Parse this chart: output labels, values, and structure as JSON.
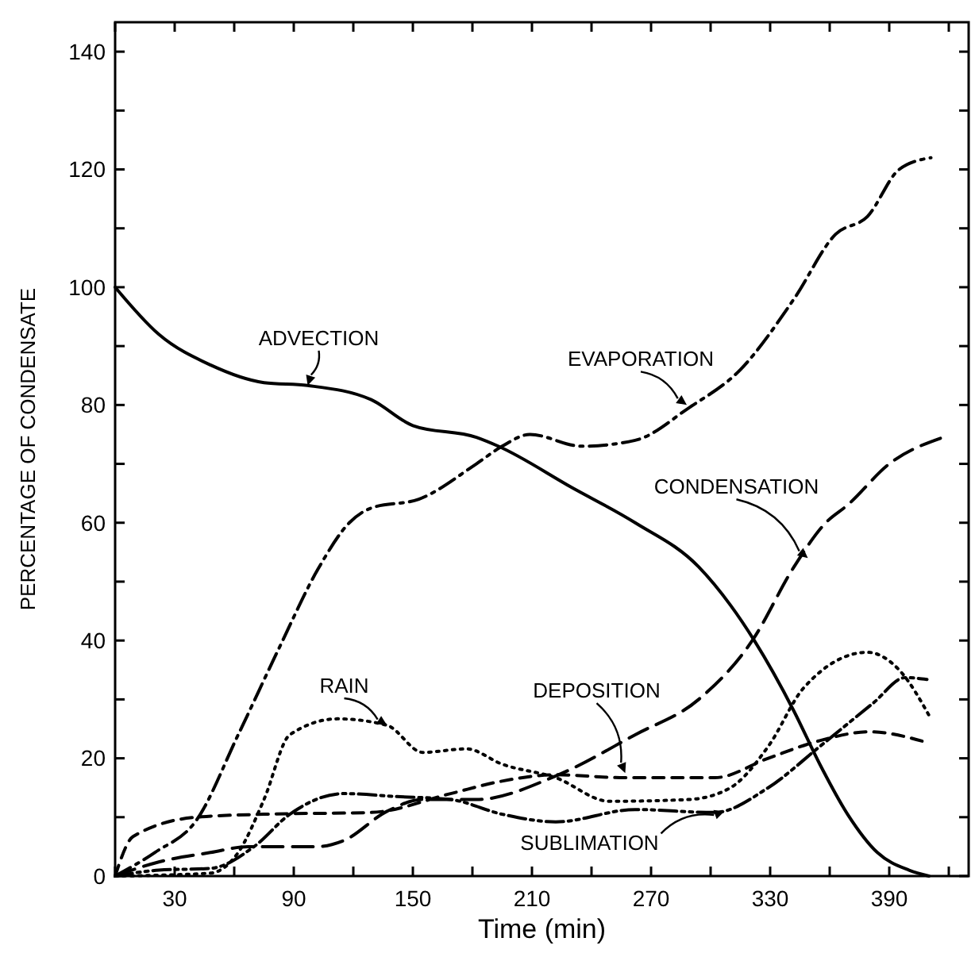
{
  "chart_data": {
    "type": "line",
    "xlabel": "Time (min)",
    "ylabel": "PERCENTAGE OF CONDENSATE",
    "xlim": [
      0,
      430
    ],
    "ylim": [
      0,
      145
    ],
    "xticks": [
      {
        "value": 0,
        "label": null
      },
      30,
      {
        "value": 60,
        "label": null
      },
      90,
      {
        "value": 120,
        "label": null
      },
      150,
      {
        "value": 180,
        "label": null
      },
      210,
      {
        "value": 240,
        "label": null
      },
      270,
      {
        "value": 300,
        "label": null
      },
      330,
      {
        "value": 360,
        "label": null
      },
      390,
      {
        "value": 420,
        "label": null
      }
    ],
    "yticks": [
      0,
      {
        "value": 10,
        "label": null
      },
      20,
      {
        "value": 30,
        "label": null
      },
      40,
      {
        "value": 50,
        "label": null
      },
      60,
      {
        "value": 70,
        "label": null
      },
      80,
      {
        "value": 90,
        "label": null
      },
      100,
      {
        "value": 110,
        "label": null
      },
      120,
      {
        "value": 130,
        "label": null
      },
      140
    ],
    "grid": false,
    "series": [
      {
        "color": "#000000",
        "line_style": "solid",
        "x": [
          0,
          22,
          48,
          75,
          97,
          129,
          150,
          182,
          193,
          230,
          262,
          294,
          310,
          322,
          342,
          355,
          369,
          384,
          400,
          410
        ],
        "values": [
          100,
          92,
          86.8,
          83.8,
          83.3,
          80.9,
          76.5,
          74.5,
          73,
          66,
          60,
          52.5,
          46,
          40,
          28,
          19,
          10.5,
          4,
          1,
          0
        ]
      },
      {
        "color": "#000000",
        "line_style": "dashdot",
        "x": [
          0,
          20,
          41,
          62,
          83,
          102,
          118,
          129,
          153,
          182,
          195,
          209,
          235,
          262,
          289,
          315,
          342,
          363,
          379,
          395,
          411
        ],
        "values": [
          0,
          4,
          9.5,
          24,
          39,
          52,
          60,
          62.5,
          64,
          70,
          73,
          75,
          73,
          74,
          79.5,
          86,
          98,
          109,
          112,
          120,
          122
        ]
      },
      {
        "color": "#000000",
        "line_style": "longdash",
        "x": [
          0,
          22,
          48,
          67,
          102,
          115,
          137,
          155,
          182,
          222,
          262,
          294,
          321,
          342,
          358,
          369,
          390,
          417
        ],
        "values": [
          0,
          2.4,
          4,
          5,
          5,
          6,
          11,
          13,
          13,
          17,
          24,
          30,
          40,
          52.5,
          60,
          63,
          70,
          74.5
        ]
      },
      {
        "color": "#000000",
        "line_style": "dotted",
        "x": [
          0,
          48,
          62,
          75,
          88,
          112,
          137,
          155,
          177,
          195,
          222,
          249,
          289,
          310,
          329,
          347,
          379,
          395,
          411
        ],
        "values": [
          0,
          0.5,
          4,
          13,
          24,
          26.7,
          25.6,
          21,
          21.6,
          19,
          16.7,
          12.7,
          13,
          15,
          22,
          32,
          38,
          35,
          26.7
        ]
      },
      {
        "color": "#000000",
        "line_style": "dashed",
        "x": [
          0,
          9,
          41,
          75,
          129,
          169,
          193,
          222,
          257,
          302,
          329,
          355,
          380,
          410
        ],
        "values": [
          0,
          6.7,
          10,
          10.5,
          10.8,
          14,
          16,
          17.2,
          16.7,
          16.7,
          20,
          23,
          24.5,
          22.6
        ]
      },
      {
        "color": "#000000",
        "line_style": "dashdotdot",
        "x": [
          0,
          22,
          48,
          70,
          88,
          115,
          142,
          169,
          195,
          222,
          262,
          302,
          329,
          355,
          382,
          398,
          409
        ],
        "values": [
          0,
          1,
          1.3,
          5,
          10.5,
          14,
          13.5,
          13,
          10.5,
          9.2,
          11.3,
          10.8,
          15,
          22,
          29.4,
          33.7,
          33.4
        ]
      }
    ],
    "annotations": [
      {
        "text": "ADVECTION",
        "x": 97,
        "y": 83.3
      },
      {
        "text": "EVAPORATION",
        "x": 288,
        "y": 80
      },
      {
        "text": "CONDENSATION",
        "x": 349,
        "y": 54
      },
      {
        "text": "RAIN",
        "x": 137,
        "y": 25.6
      },
      {
        "text": "DEPOSITION",
        "x": 257,
        "y": 17.5
      },
      {
        "text": "SUBLIMATION",
        "x": 307,
        "y": 11
      }
    ]
  }
}
